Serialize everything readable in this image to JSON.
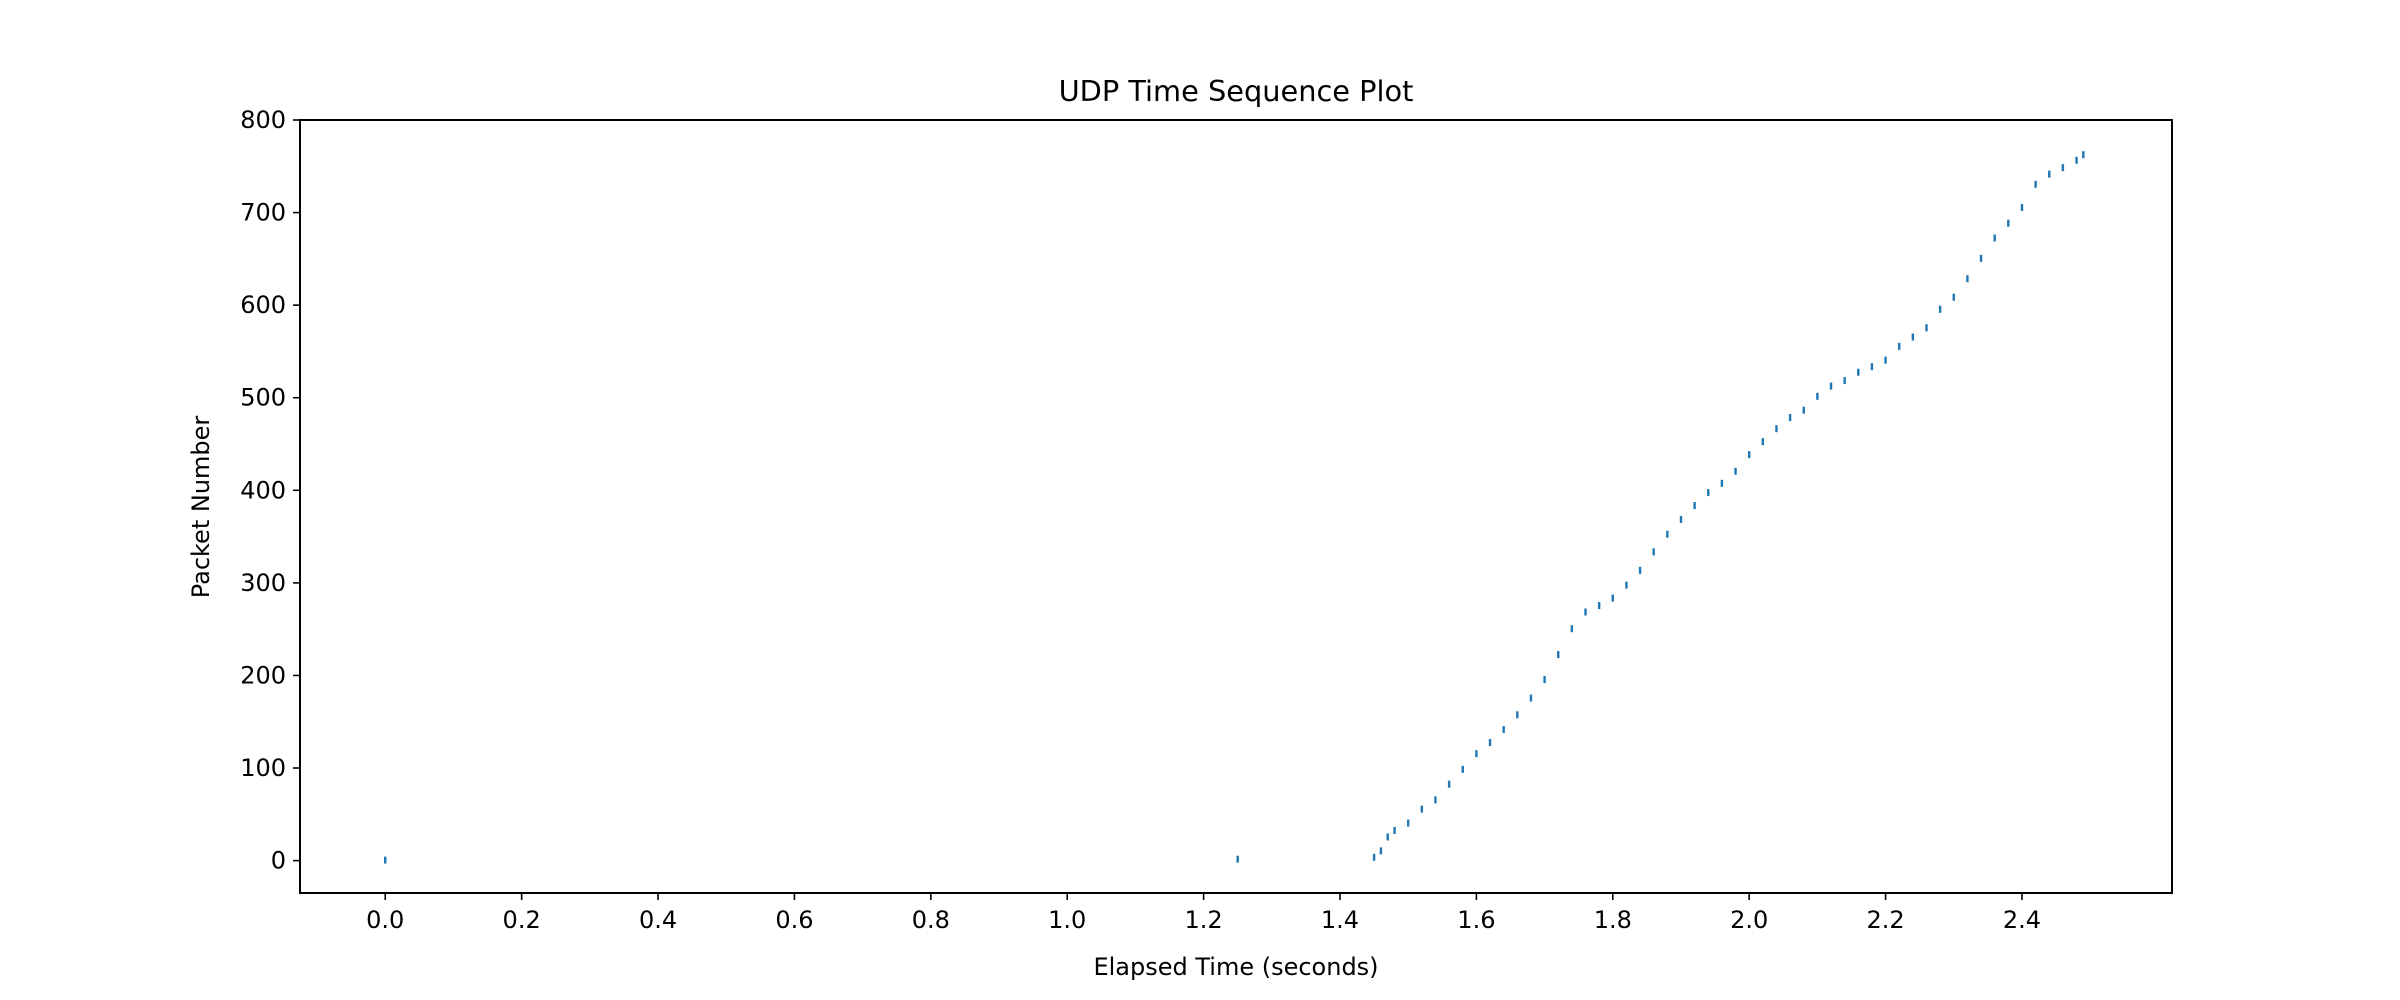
{
  "chart_data": {
    "type": "scatter",
    "title": "UDP Time Sequence Plot",
    "xlabel": "Elapsed Time (seconds)",
    "ylabel": "Packet Number",
    "xlim": [
      -0.125,
      2.62
    ],
    "ylim": [
      -35,
      800
    ],
    "xticks": [
      0.0,
      0.2,
      0.4,
      0.6,
      0.8,
      1.0,
      1.2,
      1.4,
      1.6,
      1.8,
      2.0,
      2.2,
      2.4
    ],
    "xtick_labels": [
      "0.0",
      "0.2",
      "0.4",
      "0.6",
      "0.8",
      "1.0",
      "1.2",
      "1.4",
      "1.6",
      "1.8",
      "2.0",
      "2.2",
      "2.4"
    ],
    "yticks": [
      0,
      100,
      200,
      300,
      400,
      500,
      600,
      700,
      800
    ],
    "ytick_labels": [
      "0",
      "100",
      "200",
      "300",
      "400",
      "500",
      "600",
      "700",
      "800"
    ],
    "grid": false,
    "marker_color": "#1f77b4",
    "series": [
      {
        "x": [
          0.0,
          1.25,
          1.45,
          1.46,
          1.47,
          1.48,
          1.5,
          1.52,
          1.54,
          1.56,
          1.58,
          1.6,
          1.62,
          1.64,
          1.66,
          1.68,
          1.7,
          1.72,
          1.74,
          1.76,
          1.78,
          1.8,
          1.82,
          1.84,
          1.86,
          1.88,
          1.9,
          1.92,
          1.94,
          1.96,
          1.98,
          2.0,
          2.02,
          2.04,
          2.06,
          2.08,
          2.1,
          2.12,
          2.14,
          2.16,
          2.18,
          2.2,
          2.22,
          2.24,
          2.26,
          2.28,
          2.3,
          2.32,
          2.34,
          2.36,
          2.38,
          2.4,
          2.42,
          2.44,
          2.46,
          2.48,
          2.49
        ],
        "y": [
          0,
          1,
          3,
          10,
          25,
          32,
          40,
          55,
          65,
          82,
          98,
          115,
          127,
          141,
          157,
          175,
          195,
          222,
          250,
          268,
          275,
          283,
          297,
          313,
          333,
          352,
          368,
          383,
          397,
          407,
          420,
          438,
          452,
          466,
          478,
          486,
          501,
          512,
          518,
          527,
          533,
          540,
          555,
          565,
          575,
          595,
          608,
          628,
          650,
          672,
          688,
          705,
          730,
          741,
          748,
          756,
          762
        ]
      }
    ]
  }
}
